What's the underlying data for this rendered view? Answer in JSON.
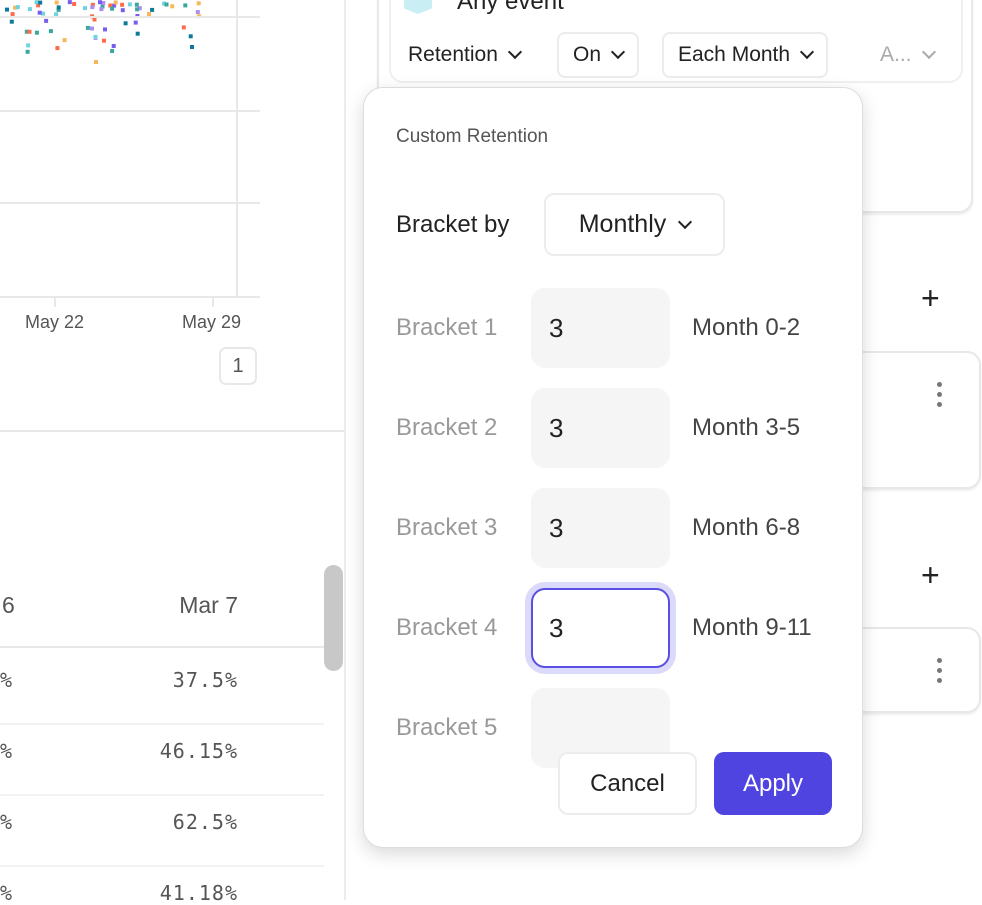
{
  "chart": {
    "x_ticks": [
      "May 22",
      "May 29"
    ],
    "page": "1",
    "point_colors": [
      "#6fd3df",
      "#3aa7a0",
      "#f8b85a",
      "#b08cf0",
      "#0d7a99",
      "#7b5cf0",
      "#ff6b4a"
    ]
  },
  "table": {
    "headers": [
      "6",
      "Mar 7"
    ],
    "rows": [
      [
        "%",
        "37.5%"
      ],
      [
        "%",
        "46.15%"
      ],
      [
        "%",
        "62.5%"
      ],
      [
        "%",
        "41.18%"
      ]
    ]
  },
  "query": {
    "event": "Any event",
    "dropdowns": [
      "Retention",
      "On",
      "Each Month",
      "A..."
    ]
  },
  "popover": {
    "title": "Custom Retention",
    "bracket_by_label": "Bracket by",
    "bracket_by_value": "Monthly",
    "brackets": [
      {
        "label": "Bracket 1",
        "value": "3",
        "range": "Month 0-2"
      },
      {
        "label": "Bracket 2",
        "value": "3",
        "range": "Month 3-5"
      },
      {
        "label": "Bracket 3",
        "value": "3",
        "range": "Month 6-8"
      },
      {
        "label": "Bracket 4",
        "value": "3",
        "range": "Month 9-11"
      },
      {
        "label": "Bracket 5",
        "value": "",
        "range": ""
      }
    ],
    "cancel": "Cancel",
    "apply": "Apply",
    "accent": "#5044e0"
  }
}
